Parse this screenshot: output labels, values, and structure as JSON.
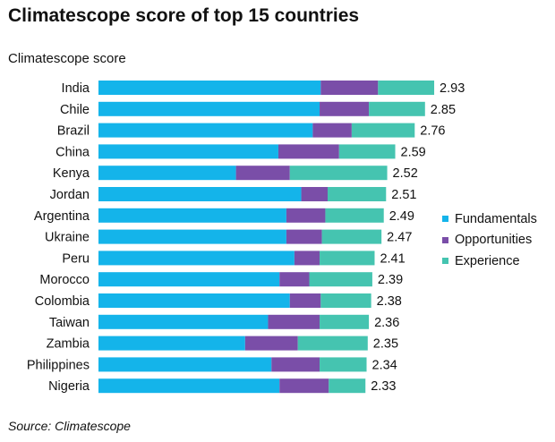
{
  "title": "Climatescope score of top 15 countries",
  "subtitle": "Climatescope score",
  "source": "Source: Climatescope",
  "chart_data": {
    "type": "bar",
    "orientation": "horizontal",
    "stacked": true,
    "title": "Climatescope score of top 15 countries",
    "xlabel": "",
    "ylabel": "Climatescope score",
    "xlim": [
      0,
      3.0
    ],
    "grid": false,
    "legend_position": "right",
    "categories": [
      "India",
      "Chile",
      "Brazil",
      "China",
      "Kenya",
      "Jordan",
      "Argentina",
      "Ukraine",
      "Peru",
      "Morocco",
      "Colombia",
      "Taiwan",
      "Zambia",
      "Philippines",
      "Nigeria"
    ],
    "totals": [
      "2.93",
      "2.85",
      "2.76",
      "2.59",
      "2.52",
      "2.51",
      "2.49",
      "2.47",
      "2.41",
      "2.39",
      "2.38",
      "2.36",
      "2.35",
      "2.34",
      "2.33"
    ],
    "series": [
      {
        "name": "Fundamentals",
        "color": "#14B4EA",
        "values": [
          1.94,
          1.93,
          1.87,
          1.57,
          1.2,
          1.77,
          1.64,
          1.64,
          1.71,
          1.58,
          1.67,
          1.48,
          1.28,
          1.51,
          1.58
        ]
      },
      {
        "name": "Opportunities",
        "color": "#7A4EA8",
        "values": [
          0.5,
          0.43,
          0.34,
          0.53,
          0.47,
          0.23,
          0.34,
          0.31,
          0.22,
          0.26,
          0.27,
          0.45,
          0.46,
          0.42,
          0.43
        ]
      },
      {
        "name": "Experience",
        "color": "#45C4B0",
        "values": [
          0.49,
          0.49,
          0.55,
          0.49,
          0.85,
          0.51,
          0.51,
          0.52,
          0.48,
          0.55,
          0.44,
          0.43,
          0.61,
          0.41,
          0.32
        ]
      }
    ]
  }
}
